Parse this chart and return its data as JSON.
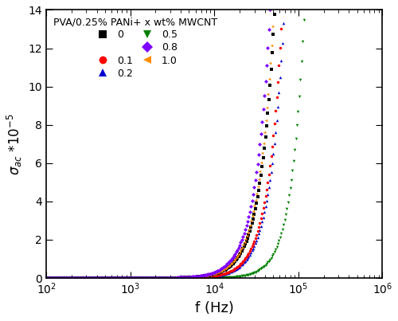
{
  "title": "PVA/0.25% PANi+ x wt% MWCNT",
  "xlabel": "f (Hz)",
  "ylabel_text": "$\\sigma_{ac}$ *10$^{-5}$",
  "xmin": 100,
  "xmax": 1000000,
  "ymin": 0,
  "ymax": 14,
  "yticks": [
    0,
    2,
    4,
    6,
    8,
    10,
    12,
    14
  ],
  "series": [
    {
      "label": "0",
      "color": "#000000",
      "marker": "s",
      "A": 1.3e-16,
      "n": 2.55
    },
    {
      "label": "0.1",
      "color": "#ff0000",
      "marker": "o",
      "A": 5.5e-17,
      "n": 2.58
    },
    {
      "label": "0.2",
      "color": "#0000cd",
      "marker": "^",
      "A": 4.8e-17,
      "n": 2.58
    },
    {
      "label": "0.5",
      "color": "#008000",
      "marker": "v",
      "A": 5e-19,
      "n": 2.85
    },
    {
      "label": "0.8",
      "color": "#7f00ff",
      "marker": "D",
      "A": 2.5e-16,
      "n": 2.52
    },
    {
      "label": "1.0",
      "color": "#ff8c00",
      "marker": "<",
      "A": 1.8e-16,
      "n": 2.53
    }
  ],
  "n_points": 300,
  "markersize": 2.5
}
